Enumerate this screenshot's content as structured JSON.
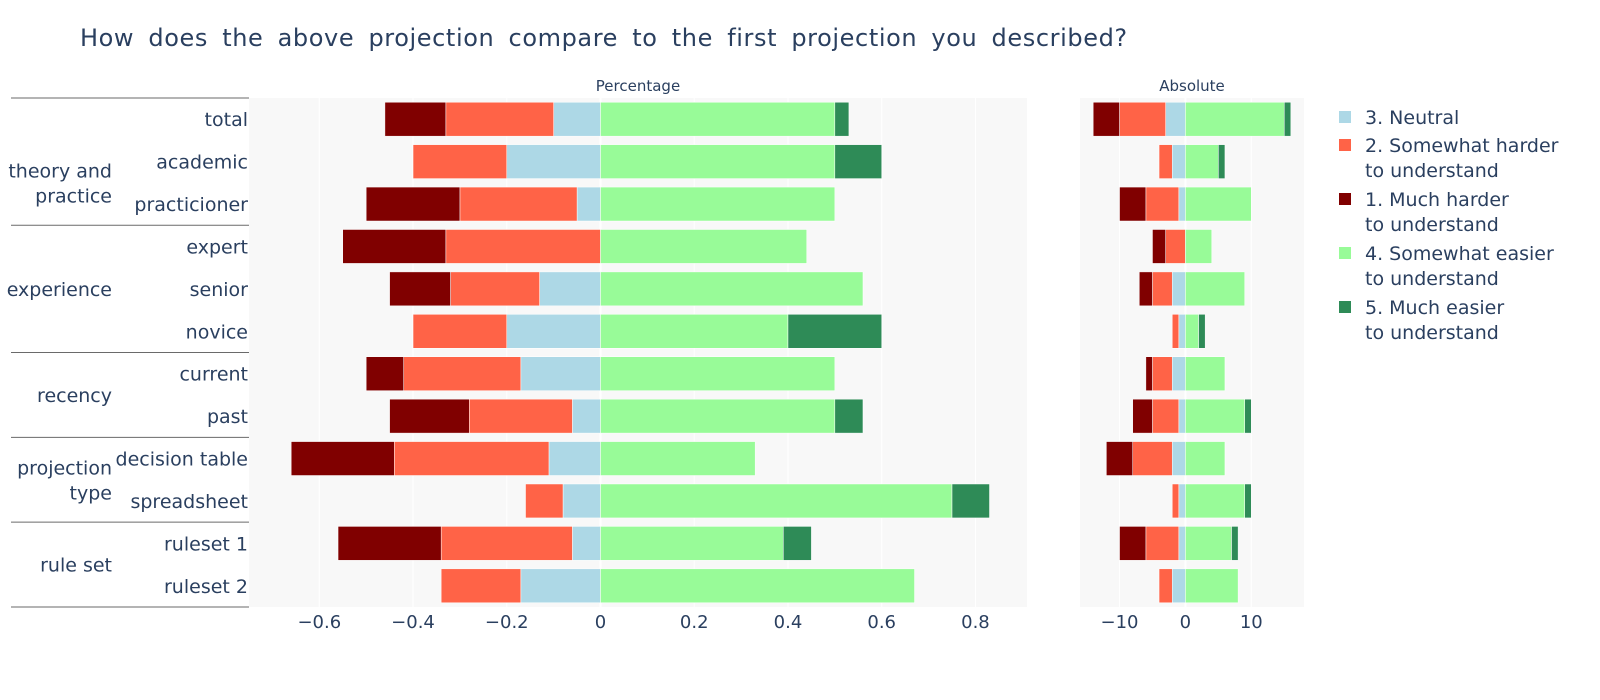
{
  "title": "How does the above projection compare to the first projection you described?",
  "colors": {
    "3. Neutral": "#add8e6",
    "2. Somewhat harder to understand": "#ff6347",
    "1. Much harder to understand": "#800000",
    "4. Somewhat easier to understand": "#98fb98",
    "5. Much easier to understand": "#2e8b57"
  },
  "chart_data": [
    {
      "type": "bar",
      "orientation": "horizontal",
      "barmode": "relative",
      "subtitle": "Percentage",
      "categories": [
        "total",
        "academic",
        "practicioner",
        "expert",
        "senior",
        "novice",
        "current",
        "past",
        "decision table",
        "spreadsheet",
        "ruleset 1",
        "ruleset 2"
      ],
      "groups": [
        {
          "label": [
            "theory and",
            "practice"
          ],
          "categories": [
            "academic",
            "practicioner"
          ]
        },
        {
          "label": [
            "experience"
          ],
          "categories": [
            "expert",
            "senior",
            "novice"
          ]
        },
        {
          "label": [
            "recency"
          ],
          "categories": [
            "current",
            "past"
          ]
        },
        {
          "label": [
            "projection",
            "type"
          ],
          "categories": [
            "decision table",
            "spreadsheet"
          ]
        },
        {
          "label": [
            "rule set"
          ],
          "categories": [
            "ruleset 1",
            "ruleset 2"
          ]
        }
      ],
      "xlim": [
        -0.75,
        0.91
      ],
      "xticks": [
        -0.6,
        -0.4,
        -0.2,
        0,
        0.2,
        0.4,
        0.6,
        0.8
      ],
      "xtick_labels": [
        "−0.6",
        "−0.4",
        "−0.2",
        "0",
        "0.2",
        "0.4",
        "0.6",
        "0.8"
      ],
      "series": [
        {
          "name": "3. Neutral",
          "values": [
            -0.1,
            -0.2,
            -0.05,
            0,
            -0.13,
            -0.2,
            -0.17,
            -0.06,
            -0.11,
            -0.08,
            -0.06,
            -0.17
          ]
        },
        {
          "name": "2. Somewhat harder to understand",
          "values": [
            -0.23,
            -0.2,
            -0.25,
            -0.33,
            -0.19,
            -0.2,
            -0.25,
            -0.22,
            -0.33,
            -0.08,
            -0.28,
            -0.17
          ]
        },
        {
          "name": "1. Much harder to understand",
          "values": [
            -0.13,
            0,
            -0.2,
            -0.22,
            -0.13,
            0,
            -0.08,
            -0.17,
            -0.22,
            0,
            -0.22,
            0
          ]
        },
        {
          "name": "4. Somewhat easier to understand",
          "values": [
            0.5,
            0.5,
            0.5,
            0.44,
            0.56,
            0.4,
            0.5,
            0.5,
            0.33,
            0.75,
            0.39,
            0.67
          ]
        },
        {
          "name": "5. Much easier to understand",
          "values": [
            0.03,
            0.1,
            0,
            0,
            0,
            0.2,
            0,
            0.06,
            0,
            0.08,
            0.06,
            0
          ]
        }
      ]
    },
    {
      "type": "bar",
      "orientation": "horizontal",
      "barmode": "relative",
      "subtitle": "Absolute",
      "categories": [
        "total",
        "academic",
        "practicioner",
        "expert",
        "senior",
        "novice",
        "current",
        "past",
        "decision table",
        "spreadsheet",
        "ruleset 1",
        "ruleset 2"
      ],
      "xlim": [
        -16,
        18
      ],
      "xticks": [
        -10,
        0,
        10
      ],
      "xtick_labels": [
        "−10",
        "0",
        "10"
      ],
      "series": [
        {
          "name": "3. Neutral",
          "values": [
            -3,
            -2,
            -1,
            0,
            -2,
            -1,
            -2,
            -1,
            -2,
            -1,
            -1,
            -2
          ]
        },
        {
          "name": "2. Somewhat harder to understand",
          "values": [
            -7,
            -2,
            -5,
            -3,
            -3,
            -1,
            -3,
            -4,
            -6,
            -1,
            -5,
            -2
          ]
        },
        {
          "name": "1. Much harder to understand",
          "values": [
            -4,
            0,
            -4,
            -2,
            -2,
            0,
            -1,
            -3,
            -4,
            0,
            -4,
            0
          ]
        },
        {
          "name": "4. Somewhat easier to understand",
          "values": [
            15,
            5,
            10,
            4,
            9,
            2,
            6,
            9,
            6,
            9,
            7,
            8
          ]
        },
        {
          "name": "5. Much easier to understand",
          "values": [
            1,
            1,
            0,
            0,
            0,
            1,
            0,
            1,
            0,
            1,
            1,
            0
          ]
        }
      ]
    }
  ],
  "legend": [
    {
      "key": "3. Neutral",
      "lines": [
        "3. Neutral"
      ]
    },
    {
      "key": "2. Somewhat harder to understand",
      "lines": [
        "2. Somewhat harder",
        "to understand"
      ]
    },
    {
      "key": "1. Much harder to understand",
      "lines": [
        "1. Much harder",
        "to understand"
      ]
    },
    {
      "key": "4. Somewhat easier to understand",
      "lines": [
        "4. Somewhat easier",
        "to understand"
      ]
    },
    {
      "key": "5. Much easier to understand",
      "lines": [
        "5. Much easier",
        "to understand"
      ]
    }
  ]
}
